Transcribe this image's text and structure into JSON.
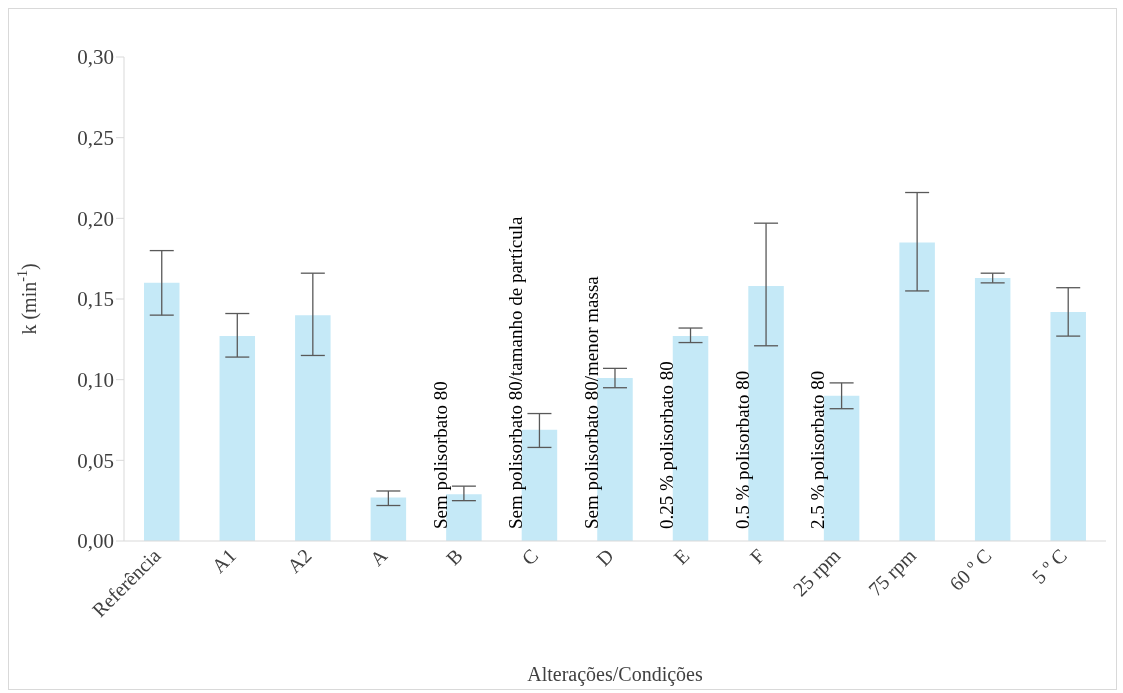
{
  "chart_data": {
    "type": "bar",
    "xlabel": "Alterações/Condições",
    "ylabel": "k (min$^{-1}$)",
    "categories": [
      "Referência",
      "A1",
      "A2",
      "A",
      "B",
      "C",
      "D",
      "E",
      "F",
      "25 rpm",
      "75 rpm",
      "60 º C",
      "5 º C"
    ],
    "values": [
      0.16,
      0.127,
      0.14,
      0.027,
      0.029,
      0.069,
      0.101,
      0.127,
      0.158,
      0.09,
      0.185,
      0.163,
      0.142
    ],
    "errors": [
      [
        0.14,
        0.18
      ],
      [
        0.114,
        0.141
      ],
      [
        0.115,
        0.166
      ],
      [
        0.022,
        0.031
      ],
      [
        0.025,
        0.034
      ],
      [
        0.058,
        0.079
      ],
      [
        0.095,
        0.107
      ],
      [
        0.123,
        0.132
      ],
      [
        0.121,
        0.197
      ],
      [
        0.082,
        0.098
      ],
      [
        0.155,
        0.216
      ],
      [
        0.16,
        0.166
      ],
      [
        0.127,
        0.157
      ]
    ],
    "color": "#c5e9f7",
    "ylim": [
      0,
      0.3
    ],
    "yticks": [
      {
        "value": 0,
        "label": "0,00"
      },
      {
        "value": 0.05,
        "label": "0,05"
      },
      {
        "value": 0.1,
        "label": "0,10"
      },
      {
        "value": 0.15,
        "label": "0,15"
      },
      {
        "value": 0.2,
        "label": "0,20"
      },
      {
        "value": 0.25,
        "label": "0,25"
      },
      {
        "value": 0.3,
        "label": "0,30"
      }
    ],
    "grid": false,
    "legend": false,
    "annotations": [
      "Sem polisorbato 80",
      "Sem polisorbato 80/tamanho de partícula",
      "Sem polisorbato 80/menor massa",
      "0.25 % polisorbato 80",
      "0.5 % polisorbato 80",
      "2.5 % polisorbato 80"
    ]
  }
}
